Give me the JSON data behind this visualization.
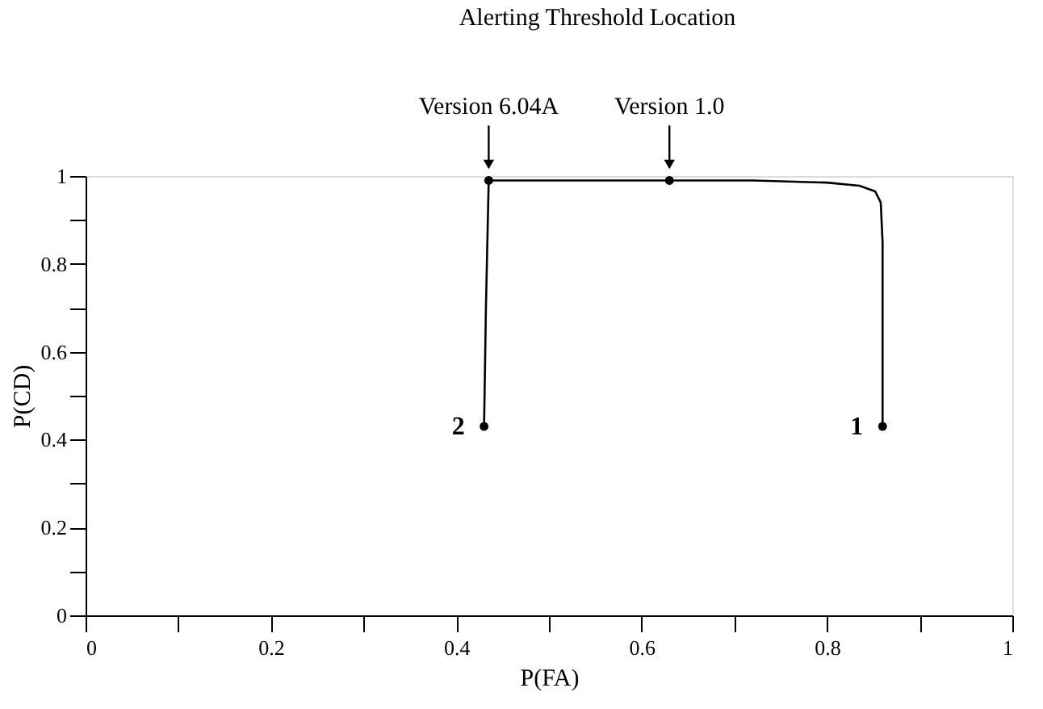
{
  "chart_data": {
    "type": "line",
    "title": "Alerting Threshold Location",
    "xlabel": "P(FA)",
    "ylabel": "P(CD)",
    "xlim": [
      0,
      1
    ],
    "ylim": [
      0,
      1
    ],
    "xticks": [
      0,
      {
        "value": 0.1,
        "label": null
      },
      0.2,
      {
        "value": 0.3,
        "label": null
      },
      0.4,
      {
        "value": 0.5,
        "label": null
      },
      0.6,
      {
        "value": 0.7,
        "label": null
      },
      0.8,
      {
        "value": 0.9,
        "label": null
      },
      1
    ],
    "yticks": [
      0,
      {
        "value": 0.1,
        "label": null
      },
      0.2,
      {
        "value": 0.3,
        "label": null
      },
      0.4,
      {
        "value": 0.5,
        "label": null
      },
      0.6,
      {
        "value": 0.7,
        "label": null
      },
      0.8,
      {
        "value": 0.9,
        "label": null
      },
      1
    ],
    "grid": false,
    "series": [
      {
        "color": "#000000",
        "marker": "none",
        "x": [
          0.43,
          0.432,
          0.435,
          0.5,
          0.63,
          0.72,
          0.8,
          0.835,
          0.852,
          0.858,
          0.86,
          0.86
        ],
        "values": [
          0.43,
          0.7,
          0.99,
          0.99,
          0.99,
          0.99,
          0.985,
          0.978,
          0.965,
          0.94,
          0.85,
          0.43
        ]
      },
      {
        "type": "scatter",
        "color": "#000000",
        "marker": "circle",
        "x": [
          0.43,
          0.435,
          0.63,
          0.86
        ],
        "values": [
          0.43,
          0.99,
          0.99,
          0.43
        ]
      }
    ],
    "annotations": [
      {
        "text": "Version 6.04A",
        "x": 0.435,
        "y": 0.99
      },
      {
        "text": "Version 1.0",
        "x": 0.63,
        "y": 0.99
      },
      {
        "text": "2",
        "x": 0.43,
        "y": 0.43
      },
      {
        "text": "1",
        "x": 0.86,
        "y": 0.43
      }
    ]
  }
}
